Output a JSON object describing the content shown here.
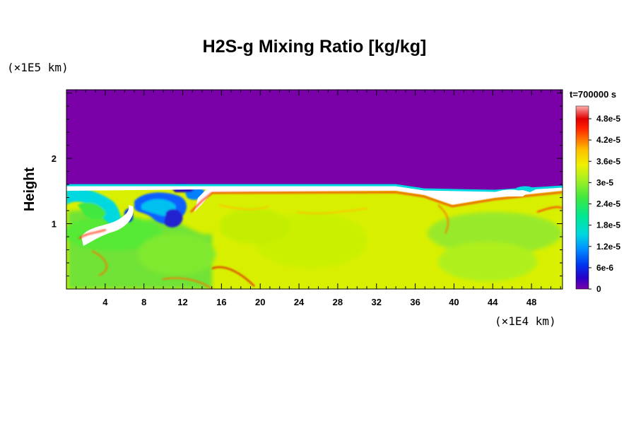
{
  "chart_data": {
    "type": "heatmap",
    "title": "H2S-g Mixing Ratio [kg/kg]",
    "ylabel": "Height",
    "x_unit_label": "(×1E4 km)",
    "y_unit_label": "(×1E5 km)",
    "time_label": "t=700000 s",
    "x_ticks": [
      "4",
      "8",
      "12",
      "16",
      "20",
      "24",
      "28",
      "32",
      "36",
      "40",
      "44",
      "48"
    ],
    "x_tick_values": [
      4,
      8,
      12,
      16,
      20,
      24,
      28,
      32,
      36,
      40,
      44,
      48
    ],
    "xlim": [
      0,
      51.2
    ],
    "y_ticks": [
      "1",
      "2"
    ],
    "y_tick_values": [
      1,
      2
    ],
    "ylim": [
      0,
      3.05
    ],
    "colorbar": {
      "labels": [
        "0",
        "6e-6",
        "1.2e-5",
        "1.8e-5",
        "2.4e-5",
        "3e-5",
        "3.6e-5",
        "4.2e-5",
        "4.8e-5"
      ],
      "range": [
        0,
        5.4e-05
      ],
      "colors": [
        "#7a00a8",
        "#2a00c8",
        "#0033ee",
        "#0090ff",
        "#00d8e0",
        "#00e890",
        "#40e840",
        "#a8f020",
        "#f0f000",
        "#ffc000",
        "#ff7000",
        "#ff2000",
        "#e00000",
        "#f06060",
        "#ffb0b0"
      ]
    },
    "field": {
      "background_value": 0,
      "interface_height": 1.6,
      "lower_layer_typical_value": 3.6e-05
    }
  }
}
